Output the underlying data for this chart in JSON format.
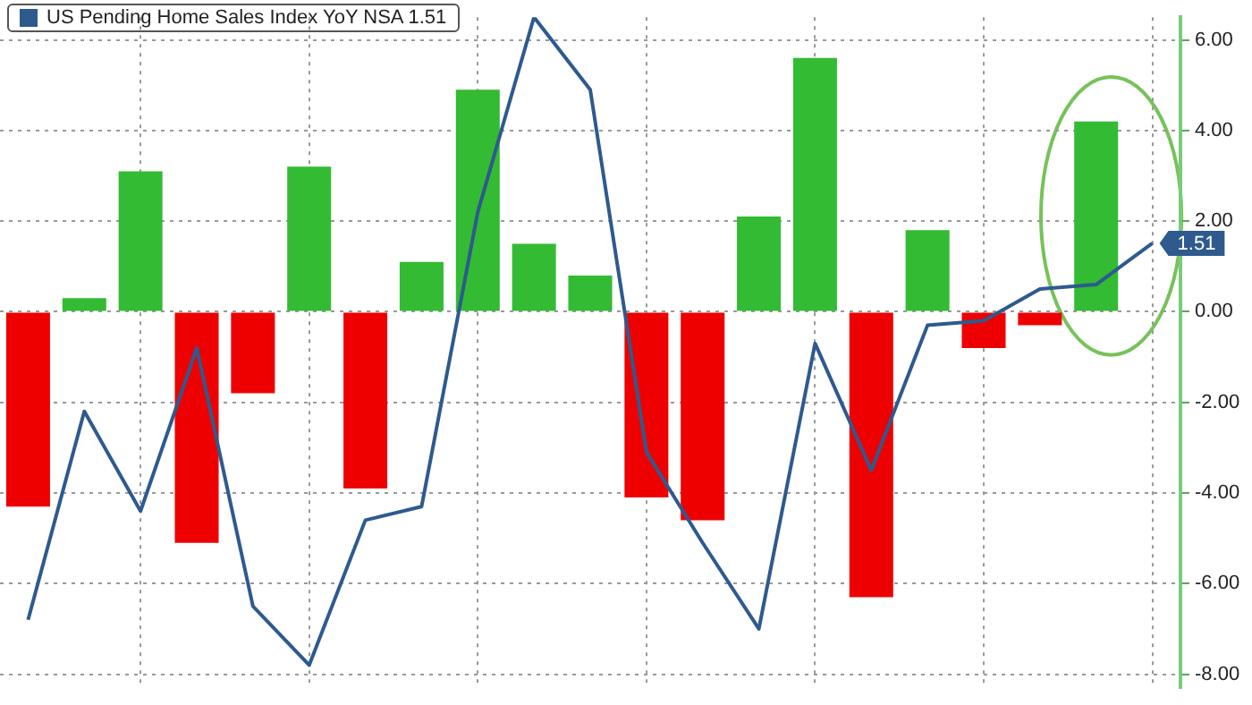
{
  "chart_data": {
    "type": "bar",
    "categories": [
      null,
      null,
      null,
      null,
      null,
      null,
      null,
      null,
      null,
      null,
      null,
      null,
      null,
      null,
      null,
      null,
      null,
      null,
      null,
      null,
      null
    ],
    "series": [
      {
        "colors": [
          "#ee0000",
          "#33bb33",
          "#33bb33",
          "#ee0000",
          "#ee0000",
          "#33bb33",
          "#ee0000",
          "#33bb33",
          "#33bb33",
          "#33bb33",
          "#33bb33",
          "#ee0000",
          "#ee0000",
          "#33bb33",
          "#33bb33",
          "#ee0000",
          "#33bb33",
          "#ee0000",
          "#ee0000",
          "#33bb33",
          "#33bb33"
        ],
        "values": [
          -4.3,
          0.3,
          3.1,
          -5.1,
          -1.8,
          3.2,
          -3.9,
          1.1,
          4.9,
          1.5,
          0.8,
          -4.1,
          -4.6,
          2.1,
          5.6,
          -6.3,
          1.8,
          -0.8,
          -0.3,
          4.2,
          0
        ]
      },
      {
        "type": "line",
        "name": "US Pending Home Sales Index YoY NSA 1.51",
        "color": "#2e5a8e",
        "values": [
          -6.8,
          -2.2,
          -4.4,
          -0.8,
          -6.5,
          -7.8,
          -4.6,
          -4.3,
          2.2,
          6.5,
          4.9,
          -3.1,
          -5.1,
          -7.0,
          -0.7,
          -3.5,
          -0.3,
          -0.2,
          0.5,
          0.6,
          1.51
        ],
        "value_labels": [
          null,
          null,
          null,
          null,
          null,
          null,
          null,
          null,
          null,
          null,
          null,
          null,
          null,
          null,
          null,
          null,
          null,
          null,
          null,
          null,
          "1.51"
        ]
      }
    ],
    "ylim": [
      -8.3,
      6.5
    ],
    "yticks": [
      {
        "value": -8,
        "label": "-8.00"
      },
      {
        "value": -6,
        "label": "-6.00"
      },
      {
        "value": -4,
        "label": "-4.00"
      },
      {
        "value": -2,
        "label": "-2.00"
      },
      {
        "value": 0,
        "label": "0.00"
      },
      {
        "value": 2,
        "label": "2.00"
      },
      {
        "value": 4,
        "label": "4.00"
      },
      {
        "value": 6,
        "label": "6.00"
      }
    ],
    "tick_labels": "y",
    "grid": true,
    "legend": "top left",
    "marker": "none",
    "line_style": "solid"
  }
}
